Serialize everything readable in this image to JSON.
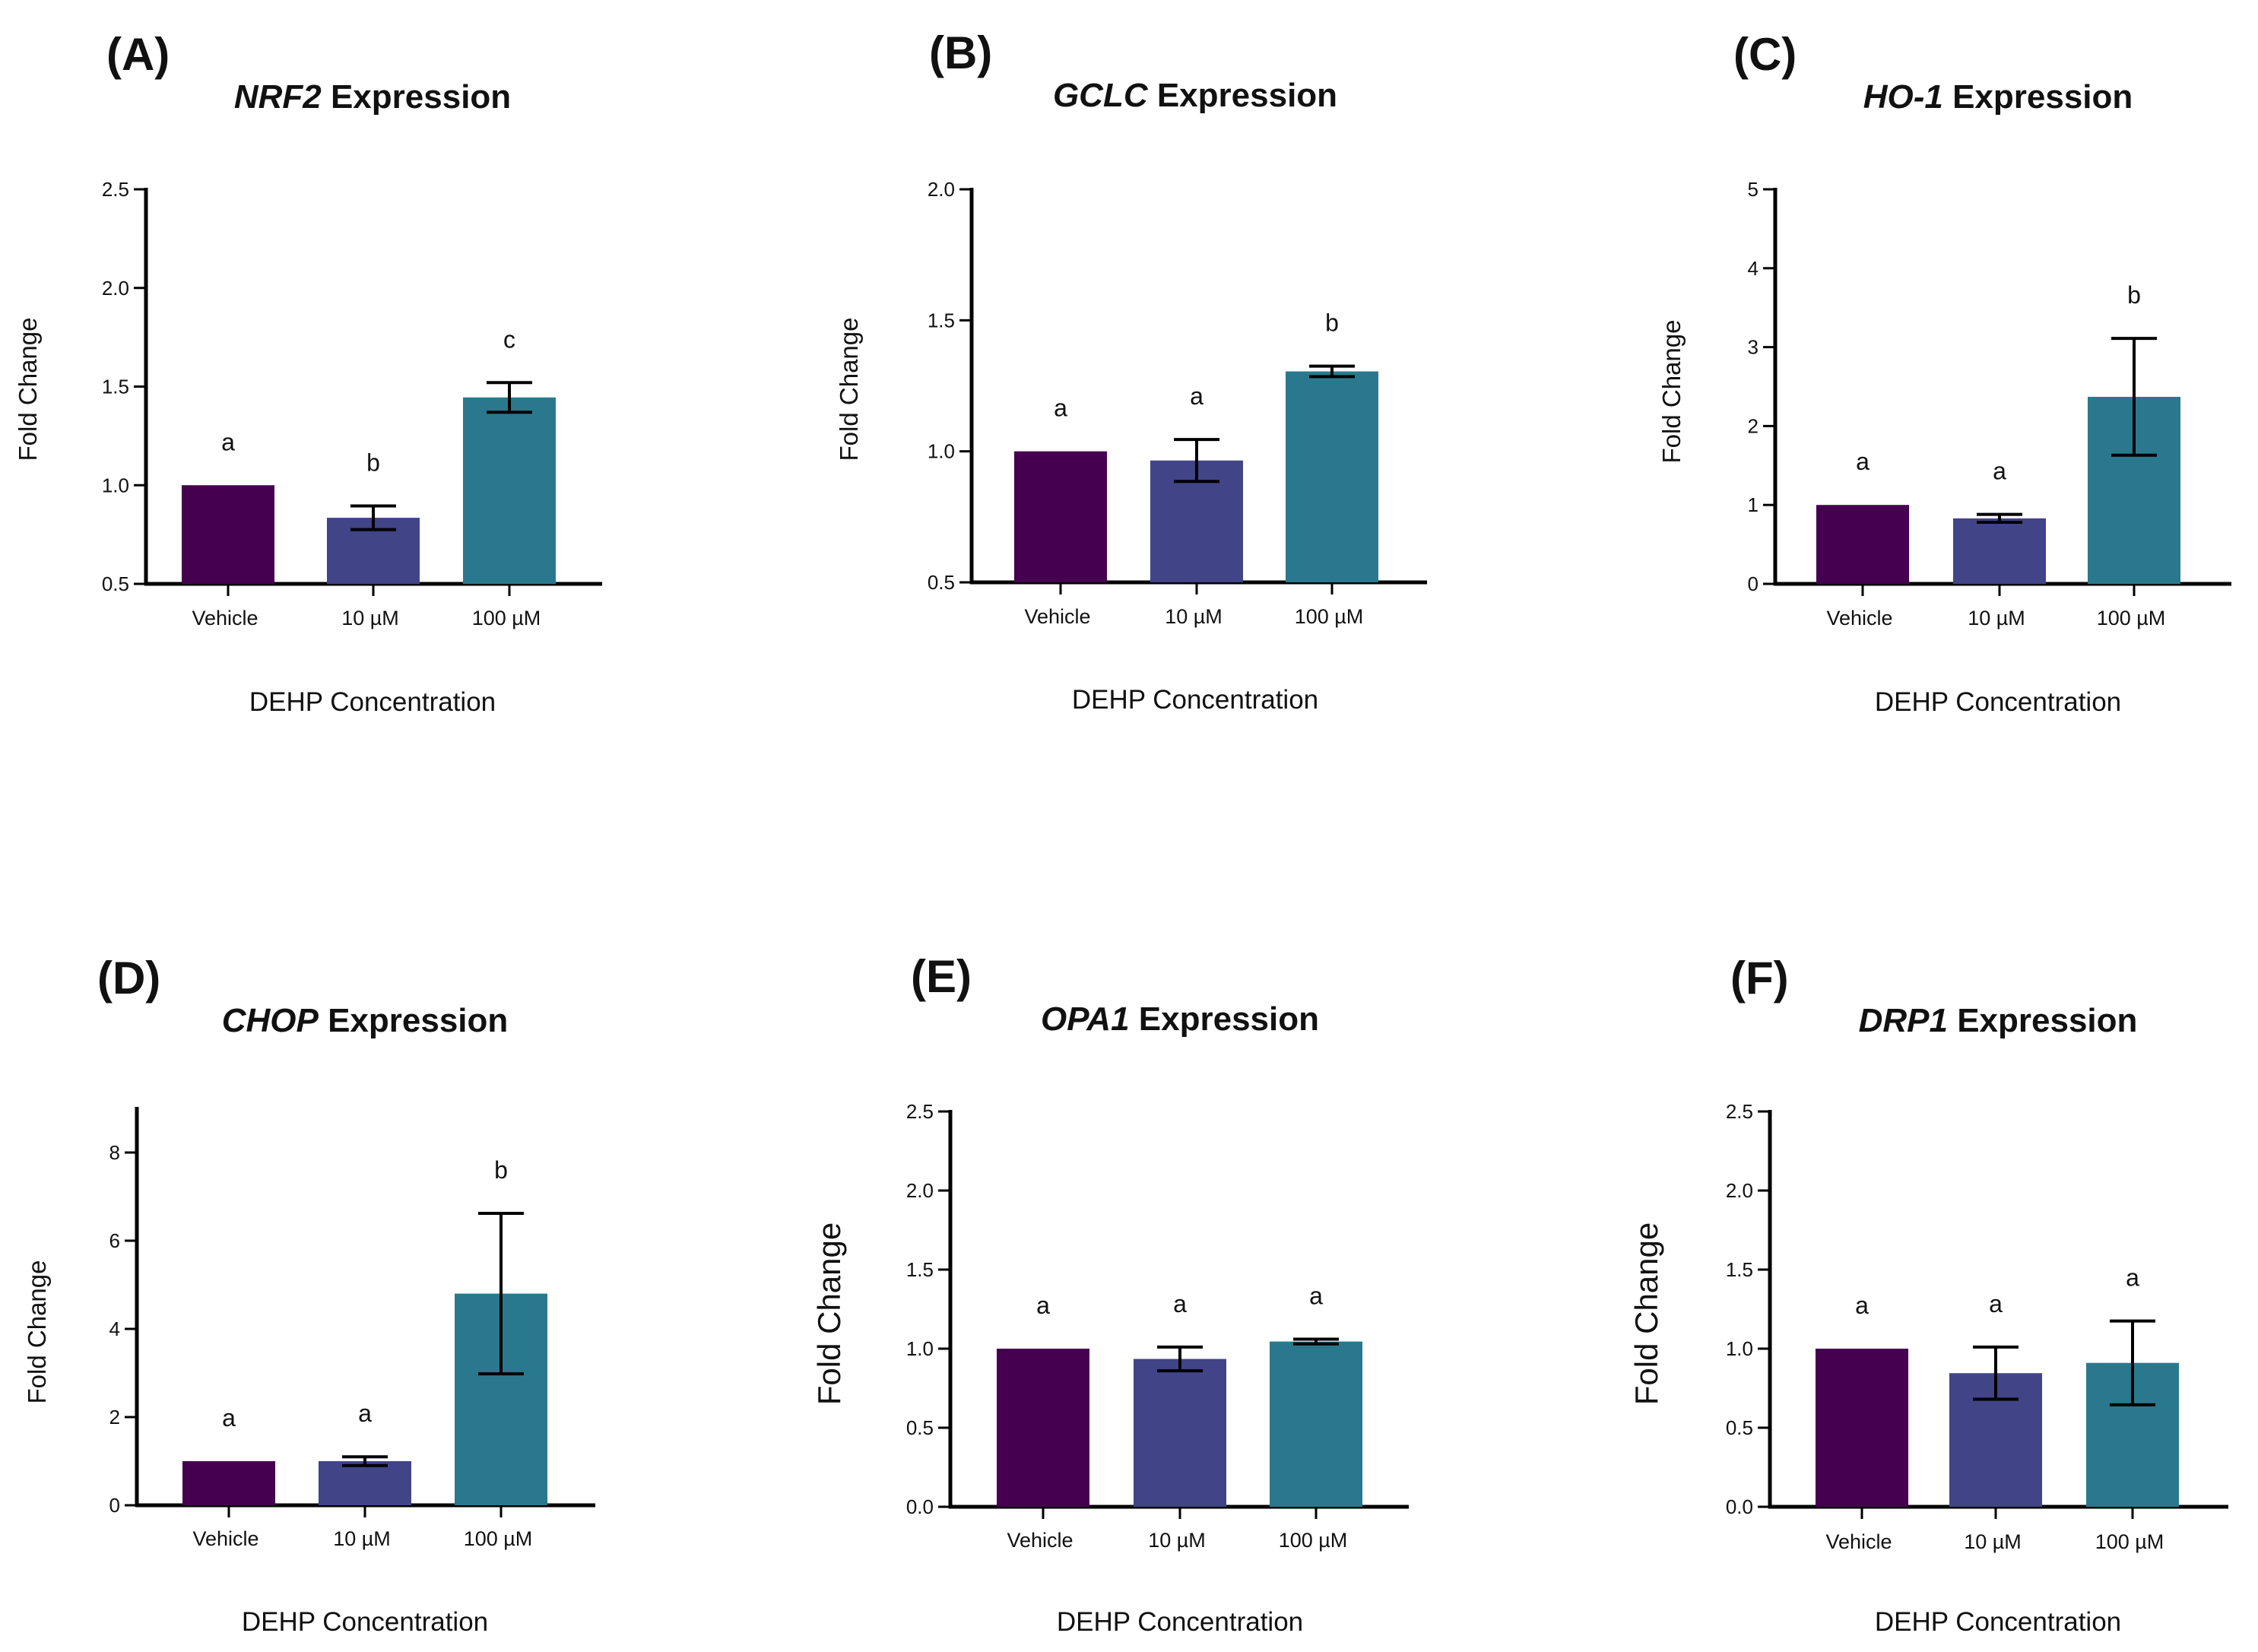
{
  "chart_data": [
    {
      "type": "bar",
      "panel": "(A)",
      "title_gene": "NRF2",
      "title_suffix": " Expression",
      "xlabel": "DEHP Concentration",
      "ylabel": "Fold Change",
      "ylim": [
        0.5,
        2.5
      ],
      "yticks": [
        0.5,
        1.0,
        1.5,
        2.0,
        2.5
      ],
      "tick_decimals": 1,
      "categories": [
        "Vehicle",
        "10 µM",
        "100 µM"
      ],
      "values": [
        1.0,
        0.835,
        1.445
      ],
      "errors": [
        0,
        0.06,
        0.075
      ],
      "significance": [
        "a",
        "b",
        "c"
      ],
      "colors": [
        "#45004f",
        "#414487",
        "#2a788e"
      ]
    },
    {
      "type": "bar",
      "panel": "(B)",
      "title_gene": "GCLC",
      "title_suffix": " Expression",
      "xlabel": "DEHP Concentration",
      "ylabel": "Fold Change",
      "ylim": [
        0.5,
        2.0
      ],
      "yticks": [
        0.5,
        1.0,
        1.5,
        2.0
      ],
      "tick_decimals": 1,
      "categories": [
        "Vehicle",
        "10 µM",
        "100 µM"
      ],
      "values": [
        1.0,
        0.965,
        1.305
      ],
      "errors": [
        0,
        0.08,
        0.02
      ],
      "significance": [
        "a",
        "a",
        "b"
      ],
      "colors": [
        "#45004f",
        "#414487",
        "#2a788e"
      ]
    },
    {
      "type": "bar",
      "panel": "(C)",
      "title_gene": "HO-1",
      "title_suffix": " Expression",
      "xlabel": "DEHP Concentration",
      "ylabel": "Fold Change",
      "ylim": [
        0,
        5
      ],
      "yticks": [
        0,
        1,
        2,
        3,
        4,
        5
      ],
      "tick_decimals": 0,
      "categories": [
        "Vehicle",
        "10 µM",
        "100 µM"
      ],
      "values": [
        1.0,
        0.83,
        2.37
      ],
      "errors": [
        0,
        0.05,
        0.74
      ],
      "significance": [
        "a",
        "a",
        "b"
      ],
      "colors": [
        "#45004f",
        "#414487",
        "#2a788e"
      ]
    },
    {
      "type": "bar",
      "panel": "(D)",
      "title_gene": "CHOP",
      "title_suffix": " Expression",
      "xlabel": "DEHP Concentration",
      "ylabel": "Fold Change",
      "ylim": [
        0,
        9
      ],
      "yticks": [
        0,
        2,
        4,
        6,
        8
      ],
      "tick_decimals": 0,
      "categories": [
        "Vehicle",
        "10 µM",
        "100 µM"
      ],
      "values": [
        1.0,
        1.0,
        4.8
      ],
      "errors": [
        0,
        0.1,
        1.82
      ],
      "significance": [
        "a",
        "a",
        "b"
      ],
      "colors": [
        "#45004f",
        "#414487",
        "#2a788e"
      ]
    },
    {
      "type": "bar",
      "panel": "(E)",
      "title_gene": "OPA1",
      "title_suffix": " Expression",
      "xlabel": "DEHP Concentration",
      "ylabel": "Fold Change",
      "ylim": [
        0,
        2.5
      ],
      "yticks": [
        0.0,
        0.5,
        1.0,
        1.5,
        2.0,
        2.5
      ],
      "tick_decimals": 1,
      "categories": [
        "Vehicle",
        "10 µM",
        "100 µM"
      ],
      "values": [
        1.0,
        0.935,
        1.045
      ],
      "errors": [
        0,
        0.075,
        0.015
      ],
      "significance": [
        "a",
        "a",
        "a"
      ],
      "colors": [
        "#45004f",
        "#414487",
        "#2a788e"
      ]
    },
    {
      "type": "bar",
      "panel": "(F)",
      "title_gene": "DRP1",
      "title_suffix": " Expression",
      "xlabel": "DEHP Concentration",
      "ylabel": "Fold Change",
      "ylim": [
        0,
        2.5
      ],
      "yticks": [
        0.0,
        0.5,
        1.0,
        1.5,
        2.0,
        2.5
      ],
      "tick_decimals": 1,
      "categories": [
        "Vehicle",
        "10 µM",
        "100 µM"
      ],
      "values": [
        1.0,
        0.845,
        0.91
      ],
      "errors": [
        0,
        0.165,
        0.265
      ],
      "significance": [
        "a",
        "a",
        "a"
      ],
      "colors": [
        "#45004f",
        "#414487",
        "#2a788e"
      ]
    }
  ]
}
